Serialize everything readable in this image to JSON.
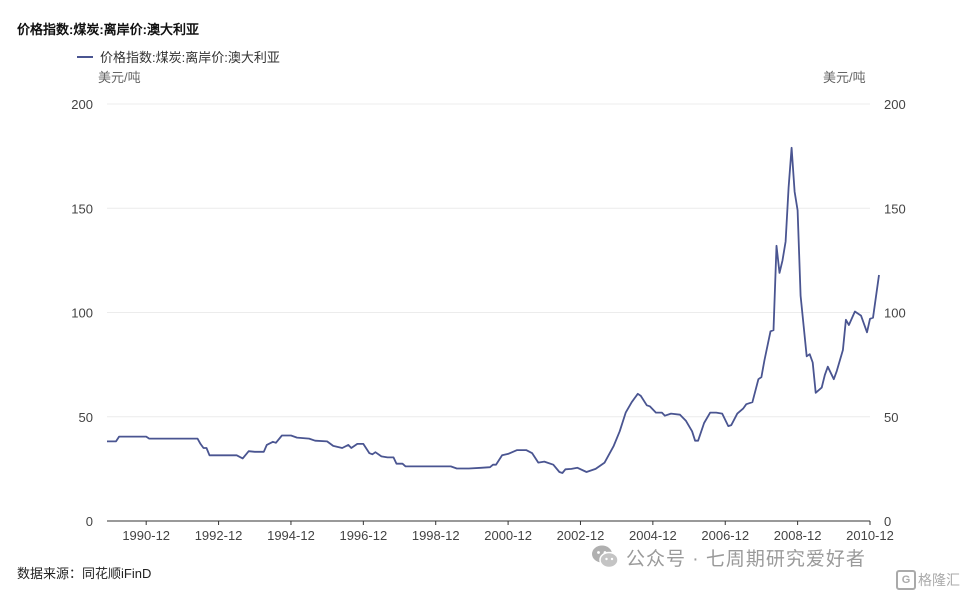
{
  "title": "价格指数:煤炭:离岸价:澳大利亚",
  "source": "数据来源：同花顺iFinD",
  "watermark": "公众号 · 七周期研究爱好者",
  "brand": "格隆汇",
  "brand_icon": "G",
  "colors": {
    "line": "#4a5591",
    "grid": "#ececec",
    "axis": "#333333"
  },
  "chart_data": {
    "type": "line",
    "title": "价格指数:煤炭:离岸价:澳大利亚",
    "legend": "top-left",
    "grid": true,
    "y_unit_left": "美元/吨",
    "y_unit_right": "美元/吨",
    "ylim": [
      0,
      200
    ],
    "y_ticks": [
      0,
      50,
      100,
      150,
      200
    ],
    "x_range": [
      1989.917,
      2011.0
    ],
    "x_ticks": [
      "1990-12",
      "1992-12",
      "1994-12",
      "1996-12",
      "1998-12",
      "2000-12",
      "2002-12",
      "2004-12",
      "2006-12",
      "2008-12",
      "2010-12"
    ],
    "series": [
      {
        "name": "价格指数:煤炭:离岸价:澳大利亚",
        "color": "#4a5591",
        "points": [
          [
            "1989-12",
            38.2
          ],
          [
            "1990-03",
            38.2
          ],
          [
            "1990-04",
            40.5
          ],
          [
            "1990-10",
            40.5
          ],
          [
            "1991-01",
            40.5
          ],
          [
            "1991-02",
            39.5
          ],
          [
            "1991-12",
            39.5
          ],
          [
            "1992-06",
            39.5
          ],
          [
            "1992-07",
            37.0
          ],
          [
            "1992-08",
            35.0
          ],
          [
            "1992-09",
            35.0
          ],
          [
            "1992-10",
            31.5
          ],
          [
            "1993-06",
            31.5
          ],
          [
            "1993-07",
            31.5
          ],
          [
            "1993-09",
            30.0
          ],
          [
            "1993-11",
            33.5
          ],
          [
            "1994-01",
            33.2
          ],
          [
            "1994-04",
            33.2
          ],
          [
            "1994-05",
            36.5
          ],
          [
            "1994-07",
            38.0
          ],
          [
            "1994-08",
            37.5
          ],
          [
            "1994-10",
            41.0
          ],
          [
            "1995-01",
            41.0
          ],
          [
            "1995-03",
            40.0
          ],
          [
            "1995-07",
            39.5
          ],
          [
            "1995-09",
            38.5
          ],
          [
            "1996-01",
            38.2
          ],
          [
            "1996-03",
            36.0
          ],
          [
            "1996-06",
            35.0
          ],
          [
            "1996-08",
            36.5
          ],
          [
            "1996-09",
            35.0
          ],
          [
            "1996-11",
            37.0
          ],
          [
            "1997-01",
            37.0
          ],
          [
            "1997-03",
            32.5
          ],
          [
            "1997-04",
            32.0
          ],
          [
            "1997-05",
            33.0
          ],
          [
            "1997-07",
            31.0
          ],
          [
            "1997-09",
            30.5
          ],
          [
            "1997-11",
            30.5
          ],
          [
            "1997-12",
            27.5
          ],
          [
            "1998-02",
            27.5
          ],
          [
            "1998-03",
            26.2
          ],
          [
            "1998-12",
            26.2
          ],
          [
            "1999-06",
            26.2
          ],
          [
            "1999-08",
            25.2
          ],
          [
            "1999-12",
            25.2
          ],
          [
            "2000-04",
            25.5
          ],
          [
            "2000-07",
            25.8
          ],
          [
            "2000-08",
            27.0
          ],
          [
            "2000-09",
            27.0
          ],
          [
            "2000-11",
            31.5
          ],
          [
            "2001-01",
            32.2
          ],
          [
            "2001-04",
            34.0
          ],
          [
            "2001-07",
            34.0
          ],
          [
            "2001-09",
            32.5
          ],
          [
            "2001-11",
            28.0
          ],
          [
            "2002-01",
            28.5
          ],
          [
            "2002-04",
            27.0
          ],
          [
            "2002-06",
            23.5
          ],
          [
            "2002-07",
            23.0
          ],
          [
            "2002-08",
            24.8
          ],
          [
            "2002-10",
            25.0
          ],
          [
            "2002-12",
            25.5
          ],
          [
            "2003-03",
            23.5
          ],
          [
            "2003-06",
            25.0
          ],
          [
            "2003-09",
            28.0
          ],
          [
            "2003-12",
            36.0
          ],
          [
            "2004-02",
            43.0
          ],
          [
            "2004-04",
            52.0
          ],
          [
            "2004-06",
            57.0
          ],
          [
            "2004-08",
            61.0
          ],
          [
            "2004-09",
            60.0
          ],
          [
            "2004-11",
            55.5
          ],
          [
            "2004-12",
            55.0
          ],
          [
            "2005-02",
            52.0
          ],
          [
            "2005-04",
            52.0
          ],
          [
            "2005-05",
            50.5
          ],
          [
            "2005-07",
            51.5
          ],
          [
            "2005-10",
            51.0
          ],
          [
            "2005-12",
            48.0
          ],
          [
            "2006-02",
            43.0
          ],
          [
            "2006-03",
            38.5
          ],
          [
            "2006-04",
            38.5
          ],
          [
            "2006-06",
            47.0
          ],
          [
            "2006-08",
            52.0
          ],
          [
            "2006-10",
            52.0
          ],
          [
            "2006-12",
            51.5
          ],
          [
            "2007-02",
            45.5
          ],
          [
            "2007-03",
            46.0
          ],
          [
            "2007-05",
            51.5
          ],
          [
            "2007-07",
            54.0
          ],
          [
            "2007-08",
            56.0
          ],
          [
            "2007-10",
            57.0
          ],
          [
            "2007-12",
            68.0
          ],
          [
            "2008-01",
            69.0
          ],
          [
            "2008-02",
            77.0
          ],
          [
            "2008-04",
            91.0
          ],
          [
            "2008-05",
            91.5
          ],
          [
            "2008-06",
            132.0
          ],
          [
            "2008-07",
            119.0
          ],
          [
            "2008-08",
            125.0
          ],
          [
            "2008-09",
            134.0
          ],
          [
            "2008-10",
            160.0
          ],
          [
            "2008-11",
            179.0
          ],
          [
            "2008-12",
            158.0
          ],
          [
            "2009-01",
            149.0
          ],
          [
            "2009-02",
            108.0
          ],
          [
            "2009-04",
            79.0
          ],
          [
            "2009-05",
            80.0
          ],
          [
            "2009-06",
            76.0
          ],
          [
            "2009-07",
            61.5
          ],
          [
            "2009-09",
            64.0
          ],
          [
            "2009-10",
            70.0
          ],
          [
            "2009-11",
            74.0
          ],
          [
            "2010-01",
            68.0
          ],
          [
            "2010-02",
            72.0
          ],
          [
            "2010-04",
            82.0
          ],
          [
            "2010-05",
            96.5
          ],
          [
            "2010-06",
            94.0
          ],
          [
            "2010-08",
            100.5
          ],
          [
            "2010-10",
            98.5
          ],
          [
            "2010-12",
            90.5
          ],
          [
            "2011-01",
            97.0
          ],
          [
            "2011-02",
            97.5
          ],
          [
            "2011-04",
            118.0
          ]
        ]
      }
    ]
  }
}
